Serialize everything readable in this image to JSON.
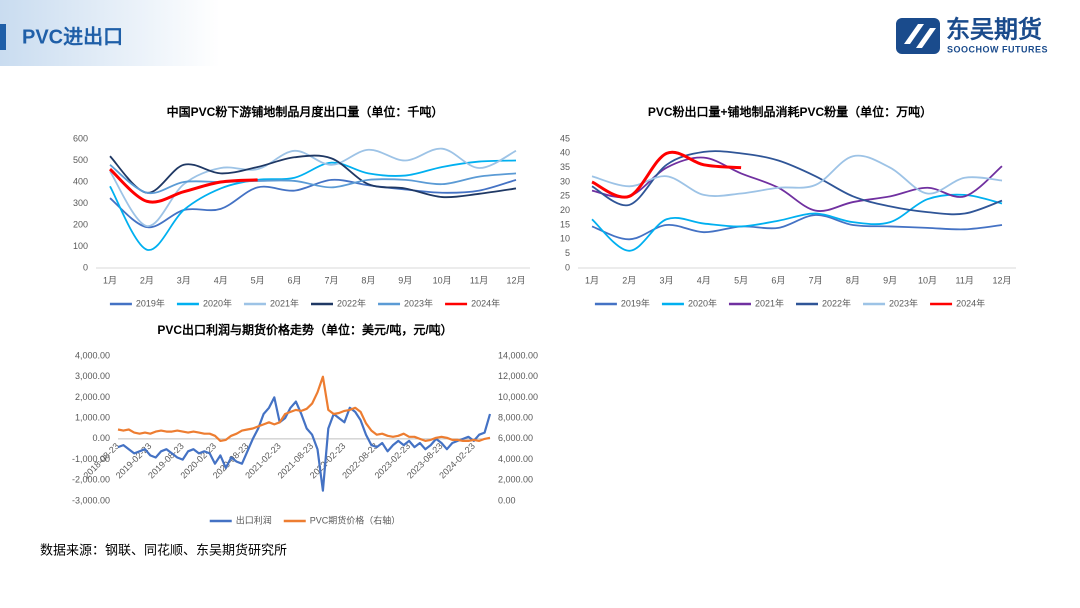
{
  "header": {
    "title": "PVC进出口",
    "logo": "东吴期货",
    "logo_en": "SOOCHOW FUTURES"
  },
  "source": "数据来源：钢联、同花顺、东吴期货研究所",
  "chart_data": [
    {
      "type": "line",
      "title": "中国PVC粉下游铺地制品月度出口量（单位：千吨）",
      "categories": [
        "1月",
        "2月",
        "3月",
        "4月",
        "5月",
        "6月",
        "7月",
        "8月",
        "9月",
        "10月",
        "11月",
        "12月"
      ],
      "ylim": [
        0,
        600
      ],
      "yticks": [
        0,
        100,
        200,
        300,
        400,
        500,
        600
      ],
      "grid": false,
      "legend": "bottom",
      "series": [
        {
          "name": "2019年",
          "color": "#4472c4",
          "values": [
            325,
            190,
            270,
            275,
            375,
            360,
            410,
            385,
            365,
            350,
            360,
            410
          ]
        },
        {
          "name": "2020年",
          "color": "#00b0f0",
          "values": [
            380,
            85,
            270,
            370,
            410,
            420,
            490,
            440,
            430,
            470,
            495,
            500
          ]
        },
        {
          "name": "2021年",
          "color": "#9dc3e6",
          "values": [
            450,
            195,
            390,
            465,
            460,
            545,
            480,
            550,
            500,
            555,
            465,
            545
          ]
        },
        {
          "name": "2022年",
          "color": "#1f3864",
          "values": [
            520,
            350,
            480,
            440,
            470,
            515,
            510,
            390,
            370,
            330,
            345,
            370
          ]
        },
        {
          "name": "2023年",
          "color": "#5b9bd5",
          "values": [
            480,
            350,
            400,
            400,
            405,
            405,
            375,
            410,
            410,
            390,
            425,
            440
          ]
        },
        {
          "name": "2024年",
          "color": "#ff0000",
          "values": [
            460,
            310,
            355,
            400,
            410,
            null,
            null,
            null,
            null,
            null,
            null,
            null
          ]
        }
      ]
    },
    {
      "type": "line",
      "title": "PVC粉出口量+铺地制品消耗PVC粉量（单位：万吨）",
      "categories": [
        "1月",
        "2月",
        "3月",
        "4月",
        "5月",
        "6月",
        "7月",
        "8月",
        "9月",
        "10月",
        "11月",
        "12月"
      ],
      "ylim": [
        0,
        45
      ],
      "yticks": [
        0,
        5,
        10,
        15,
        20,
        25,
        30,
        35,
        40,
        45
      ],
      "grid": false,
      "legend": "bottom",
      "series": [
        {
          "name": "2019年",
          "color": "#4472c4",
          "values": [
            14.5,
            10,
            15,
            12.5,
            14.5,
            14,
            18.5,
            15,
            14.5,
            14,
            13.5,
            15
          ]
        },
        {
          "name": "2020年",
          "color": "#00b0f0",
          "values": [
            17,
            6,
            17,
            15.5,
            14.5,
            16.5,
            19,
            16,
            16,
            24,
            25.5,
            22.5
          ]
        },
        {
          "name": "2021年",
          "color": "#7030a0",
          "values": [
            27,
            25,
            35,
            38.5,
            33,
            28,
            20,
            23,
            25,
            28,
            25,
            35.5
          ]
        },
        {
          "name": "2022年",
          "color": "#2f5597",
          "values": [
            28.5,
            22,
            36,
            40.5,
            40,
            37.5,
            32,
            25,
            21.5,
            19.5,
            19,
            23.5
          ]
        },
        {
          "name": "2023年",
          "color": "#9dc3e6",
          "values": [
            32,
            28.5,
            32,
            25.5,
            26,
            28,
            29,
            39,
            35,
            26,
            31.5,
            30.5
          ]
        },
        {
          "name": "2024年",
          "color": "#ff0000",
          "values": [
            30,
            25,
            40,
            36,
            35,
            null,
            null,
            null,
            null,
            null,
            null,
            null
          ]
        }
      ]
    },
    {
      "type": "dual_line",
      "title": "PVC出口利润与期货价格走势（单位：美元/吨，元/吨）",
      "x": [
        "2018-08-23",
        "2018-09-23",
        "2018-10-23",
        "2018-11-23",
        "2018-12-23",
        "2019-01-23",
        "2019-02-23",
        "2019-03-23",
        "2019-04-23",
        "2019-05-23",
        "2019-06-23",
        "2019-07-23",
        "2019-08-23",
        "2019-09-23",
        "2019-10-23",
        "2019-11-23",
        "2019-12-23",
        "2020-01-23",
        "2020-02-23",
        "2020-03-23",
        "2020-04-23",
        "2020-05-23",
        "2020-06-23",
        "2020-07-23",
        "2020-08-23",
        "2020-09-23",
        "2020-10-23",
        "2020-11-23",
        "2020-12-23",
        "2021-01-23",
        "2021-02-23",
        "2021-03-23",
        "2021-04-23",
        "2021-05-23",
        "2021-06-23",
        "2021-07-23",
        "2021-08-23",
        "2021-09-23",
        "2021-10-23",
        "2021-11-23",
        "2021-12-23",
        "2022-01-23",
        "2022-02-23",
        "2022-03-23",
        "2022-04-23",
        "2022-05-23",
        "2022-06-23",
        "2022-07-23",
        "2022-08-23",
        "2022-09-23",
        "2022-10-23",
        "2022-11-23",
        "2022-12-23",
        "2023-01-23",
        "2023-02-23",
        "2023-03-23",
        "2023-04-23",
        "2023-05-23",
        "2023-06-23",
        "2023-07-23",
        "2023-08-23",
        "2023-09-23",
        "2023-10-23",
        "2023-11-23",
        "2023-12-23",
        "2024-01-23",
        "2024-02-23",
        "2024-03-23",
        "2024-04-23",
        "2024-05-23"
      ],
      "xticks": [
        "2018-08-23",
        "2019-02-23",
        "2019-08-23",
        "2020-02-23",
        "2020-08-23",
        "2021-02-23",
        "2021-08-23",
        "2022-02-23",
        "2022-08-23",
        "2023-02-23",
        "2023-08-23",
        "2024-02-23"
      ],
      "ylim": [
        -3000,
        4000
      ],
      "yticks": [
        {
          "value": -3000,
          "label": "-3,000.00"
        },
        {
          "value": -2000,
          "label": "-2,000.00"
        },
        {
          "value": -1000,
          "label": "-1,000.00"
        },
        {
          "value": 0,
          "label": "0.00"
        },
        {
          "value": 1000,
          "label": "1,000.00"
        },
        {
          "value": 2000,
          "label": "2,000.00"
        },
        {
          "value": 3000,
          "label": "3,000.00"
        },
        {
          "value": 4000,
          "label": "4,000.00"
        }
      ],
      "y2lim": [
        0,
        14000
      ],
      "y2ticks": [
        {
          "value": 0,
          "label": "0.00"
        },
        {
          "value": 2000,
          "label": "2,000.00"
        },
        {
          "value": 4000,
          "label": "4,000.00"
        },
        {
          "value": 6000,
          "label": "6,000.00"
        },
        {
          "value": 8000,
          "label": "8,000.00"
        },
        {
          "value": 10000,
          "label": "10,000.00"
        },
        {
          "value": 12000,
          "label": "12,000.00"
        },
        {
          "value": 14000,
          "label": "14,000.00"
        }
      ],
      "grid": false,
      "legend": "bottom",
      "series": [
        {
          "name": "出口利润",
          "color": "#4472c4",
          "values": [
            -400,
            -300,
            -500,
            -700,
            -600,
            -500,
            -800,
            -900,
            -600,
            -500,
            -700,
            -900,
            -1000,
            -600,
            -500,
            -700,
            -600,
            -700,
            -1200,
            -800,
            -1400,
            -900,
            -1100,
            -1200,
            -600,
            0,
            500,
            1200,
            1500,
            2000,
            800,
            1000,
            1500,
            1800,
            1200,
            500,
            200,
            -500,
            -2500,
            500,
            1200,
            1000,
            800,
            1500,
            1300,
            900,
            200,
            -300,
            -400,
            -200,
            -600,
            -300,
            -100,
            -300,
            -100,
            -400,
            -200,
            -500,
            -300,
            0,
            -200,
            -500,
            -200,
            -100,
            0,
            100,
            -100,
            200,
            300,
            1200
          ]
        },
        {
          "name": "PVC期货价格（右轴）",
          "color": "#ed7d31",
          "axis": "y2",
          "values": [
            6900,
            6800,
            6900,
            6600,
            6500,
            6600,
            6500,
            6700,
            6800,
            6700,
            6700,
            6800,
            6700,
            6600,
            6700,
            6600,
            6500,
            6500,
            6300,
            5800,
            5900,
            6300,
            6500,
            6800,
            6900,
            7000,
            7200,
            7400,
            7600,
            7400,
            7600,
            8400,
            8600,
            8800,
            8700,
            8900,
            9400,
            10500,
            12000,
            8800,
            8400,
            8500,
            8700,
            8800,
            9000,
            8600,
            7500,
            6800,
            6400,
            6500,
            6300,
            6200,
            6300,
            6500,
            6200,
            6200,
            6000,
            5800,
            5900,
            6100,
            6200,
            6100,
            5900,
            5900,
            5800,
            5800,
            5900,
            5800,
            6000,
            6100
          ]
        }
      ]
    }
  ]
}
